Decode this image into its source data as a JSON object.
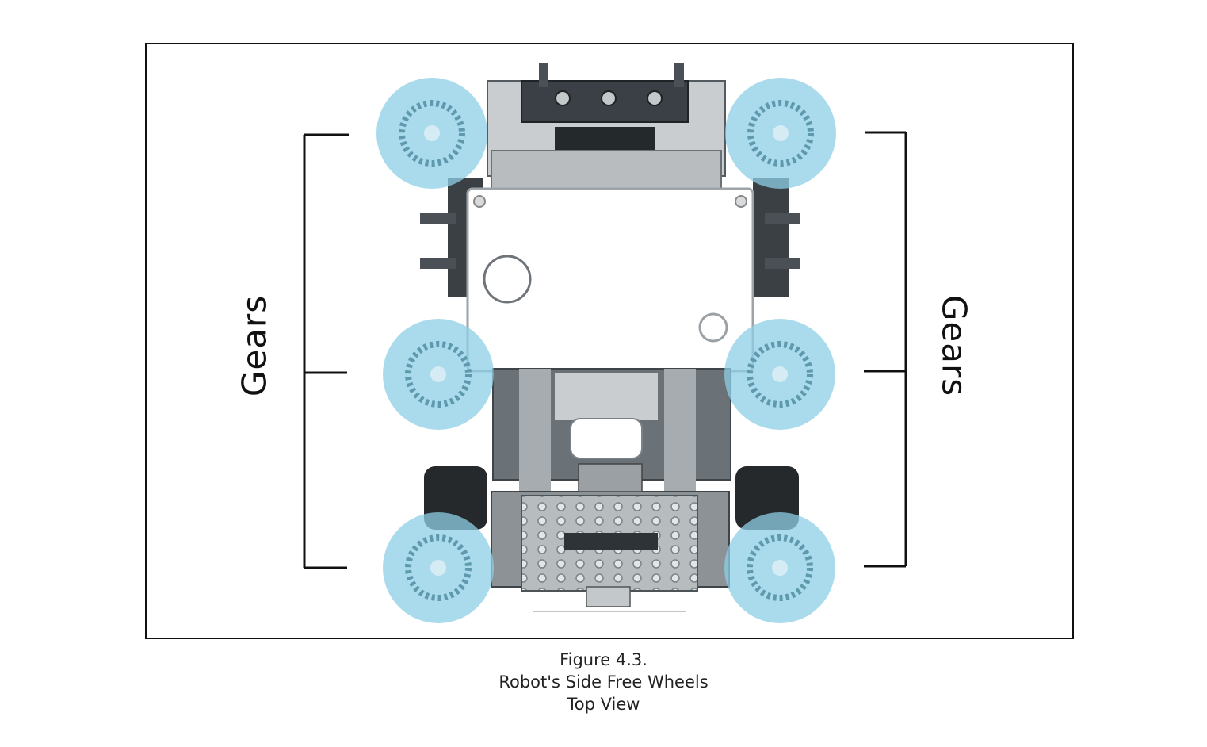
{
  "labels": {
    "left": "Gears",
    "right": "Gears"
  },
  "caption": {
    "line1": "Figure 4.3.",
    "line2": "Robot's Side Free Wheels",
    "line3": "Top View"
  },
  "colors": {
    "highlight": "#8ecfe6",
    "frame": "#111111",
    "bracket": "#111111"
  }
}
